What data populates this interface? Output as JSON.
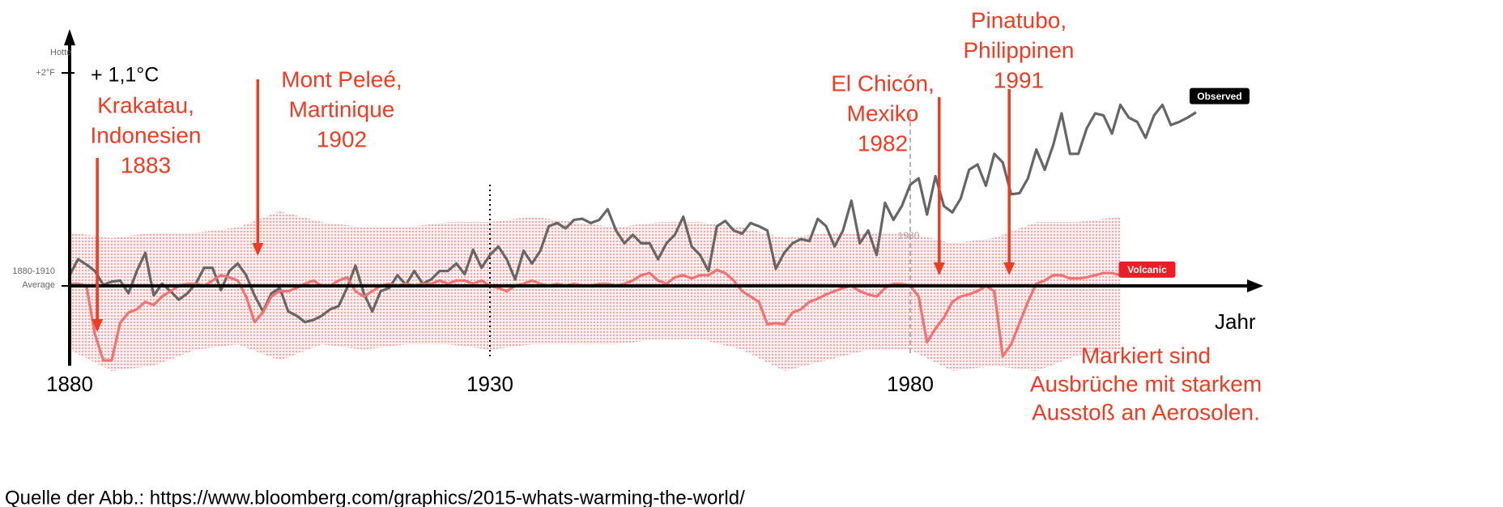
{
  "chart_data": {
    "type": "line",
    "y_label": "Hotte",
    "x_label": "Jahr",
    "xlim": [
      1880,
      2022
    ],
    "xticks": [
      1880,
      1930,
      1980
    ],
    "ylim": [
      -0.75,
      2.4
    ],
    "yticks": [
      {
        "value": 0,
        "label": "1880-1910 Average"
      },
      {
        "value": 2,
        "label": "+2°F"
      }
    ],
    "celsius_note": "+ 1,1°C",
    "marker_label": "1980",
    "series": [
      {
        "name": "Observed",
        "color": "#666666",
        "x": [
          1880,
          1881,
          1882,
          1883,
          1884,
          1885,
          1886,
          1887,
          1888,
          1889,
          1890,
          1891,
          1892,
          1893,
          1894,
          1895,
          1896,
          1897,
          1898,
          1899,
          1900,
          1901,
          1902,
          1903,
          1904,
          1905,
          1906,
          1907,
          1908,
          1909,
          1910,
          1911,
          1912,
          1913,
          1914,
          1915,
          1916,
          1917,
          1918,
          1919,
          1920,
          1921,
          1922,
          1923,
          1924,
          1925,
          1926,
          1927,
          1928,
          1929,
          1930,
          1931,
          1932,
          1933,
          1934,
          1935,
          1936,
          1937,
          1938,
          1939,
          1940,
          1941,
          1942,
          1943,
          1944,
          1945,
          1946,
          1947,
          1948,
          1949,
          1950,
          1951,
          1952,
          1953,
          1954,
          1955,
          1956,
          1957,
          1958,
          1959,
          1960,
          1961,
          1962,
          1963,
          1964,
          1965,
          1966,
          1967,
          1968,
          1969,
          1970,
          1971,
          1972,
          1973,
          1974,
          1975,
          1976,
          1977,
          1978,
          1979,
          1980,
          1981,
          1982,
          1983,
          1984,
          1985,
          1986,
          1987,
          1988,
          1989,
          1990,
          1991,
          1992,
          1993,
          1994,
          1995,
          1996,
          1997,
          1998,
          1999,
          2000,
          2001,
          2002,
          2003,
          2004,
          2005,
          2006,
          2007,
          2008,
          2009,
          2010,
          2011,
          2012,
          2013,
          2014
        ],
        "values": [
          0.1,
          0.25,
          0.2,
          0.14,
          0.01,
          0.04,
          0.05,
          -0.07,
          0.14,
          0.31,
          -0.09,
          0.02,
          -0.05,
          -0.13,
          -0.07,
          0.02,
          0.17,
          0.17,
          -0.04,
          0.14,
          0.21,
          0.1,
          -0.09,
          -0.24,
          -0.07,
          -0.02,
          -0.24,
          -0.28,
          -0.34,
          -0.32,
          -0.28,
          -0.22,
          -0.19,
          -0.02,
          0.19,
          -0.07,
          -0.24,
          -0.05,
          -0.02,
          0.1,
          0.01,
          0.14,
          0.02,
          0.06,
          0.14,
          0.14,
          0.21,
          0.11,
          0.34,
          0.17,
          0.29,
          0.37,
          0.25,
          0.06,
          0.33,
          0.21,
          0.33,
          0.56,
          0.59,
          0.54,
          0.62,
          0.63,
          0.59,
          0.62,
          0.72,
          0.52,
          0.4,
          0.48,
          0.4,
          0.4,
          0.25,
          0.4,
          0.48,
          0.65,
          0.37,
          0.29,
          0.14,
          0.56,
          0.61,
          0.52,
          0.49,
          0.59,
          0.56,
          0.52,
          0.16,
          0.31,
          0.4,
          0.44,
          0.42,
          0.63,
          0.56,
          0.37,
          0.52,
          0.8,
          0.4,
          0.52,
          0.29,
          0.78,
          0.62,
          0.75,
          0.95,
          1.01,
          0.67,
          1.03,
          0.75,
          0.69,
          0.82,
          1.09,
          1.14,
          0.94,
          1.24,
          1.16,
          0.86,
          0.87,
          1.01,
          1.28,
          1.09,
          1.32,
          1.62,
          1.24,
          1.24,
          1.48,
          1.62,
          1.6,
          1.43,
          1.7,
          1.58,
          1.54,
          1.39,
          1.6,
          1.7,
          1.51,
          1.54,
          1.58,
          1.63
        ]
      },
      {
        "name": "Volcanic",
        "color": "#f07272",
        "label_color": "#ee1c24",
        "x": [
          1880,
          1881,
          1882,
          1883,
          1884,
          1885,
          1886,
          1887,
          1888,
          1889,
          1890,
          1891,
          1892,
          1893,
          1894,
          1895,
          1896,
          1897,
          1898,
          1899,
          1900,
          1901,
          1902,
          1903,
          1904,
          1905,
          1906,
          1907,
          1908,
          1909,
          1910,
          1911,
          1912,
          1913,
          1914,
          1915,
          1916,
          1917,
          1918,
          1919,
          1920,
          1921,
          1922,
          1923,
          1924,
          1925,
          1926,
          1927,
          1928,
          1929,
          1930,
          1931,
          1932,
          1933,
          1934,
          1935,
          1936,
          1937,
          1938,
          1939,
          1940,
          1941,
          1942,
          1943,
          1944,
          1945,
          1946,
          1947,
          1948,
          1949,
          1950,
          1951,
          1952,
          1953,
          1954,
          1955,
          1956,
          1957,
          1958,
          1959,
          1960,
          1961,
          1962,
          1963,
          1964,
          1965,
          1966,
          1967,
          1968,
          1969,
          1970,
          1971,
          1972,
          1973,
          1974,
          1975,
          1976,
          1977,
          1978,
          1979,
          1980,
          1981,
          1982,
          1983,
          1984,
          1985,
          1986,
          1987,
          1988,
          1989,
          1990,
          1991,
          1992,
          1993,
          1994,
          1995,
          1996,
          1997,
          1998,
          1999,
          2000,
          2001,
          2002,
          2003,
          2004,
          2005
        ],
        "values": [
          0.02,
          0.02,
          0.0,
          -0.45,
          -0.7,
          -0.7,
          -0.35,
          -0.25,
          -0.22,
          -0.15,
          -0.18,
          -0.1,
          -0.05,
          0.0,
          0.02,
          0.02,
          0.0,
          0.05,
          0.1,
          0.08,
          0.05,
          -0.1,
          -0.34,
          -0.25,
          -0.1,
          -0.05,
          -0.05,
          -0.02,
          0.02,
          0.05,
          0.0,
          0.0,
          0.05,
          0.08,
          -0.05,
          -0.1,
          -0.05,
          0.0,
          0.02,
          0.0,
          0.02,
          0.0,
          0.02,
          0.02,
          0.05,
          0.02,
          0.05,
          0.05,
          0.02,
          0.05,
          0.0,
          -0.02,
          -0.05,
          0.0,
          0.02,
          0.05,
          0.02,
          0.0,
          0.02,
          0.0,
          0.02,
          0.0,
          0.0,
          0.02,
          0.02,
          0.0,
          0.02,
          0.05,
          0.1,
          0.12,
          0.05,
          0.02,
          0.08,
          0.1,
          0.07,
          0.1,
          0.1,
          0.15,
          0.12,
          0.05,
          -0.05,
          -0.1,
          -0.15,
          -0.36,
          -0.35,
          -0.36,
          -0.25,
          -0.22,
          -0.15,
          -0.12,
          -0.08,
          -0.05,
          -0.02,
          0.0,
          -0.05,
          -0.08,
          -0.1,
          -0.02,
          0.02,
          0.02,
          0.0,
          -0.1,
          -0.53,
          -0.4,
          -0.3,
          -0.15,
          -0.1,
          -0.08,
          -0.05,
          0.0,
          -0.05,
          -0.66,
          -0.55,
          -0.35,
          -0.15,
          0.02,
          0.05,
          0.1,
          0.1,
          0.07,
          0.07,
          0.08,
          0.1,
          0.12,
          0.12,
          0.1
        ]
      }
    ],
    "band": {
      "color": "#f7a0a0",
      "x": [
        1880,
        1885,
        1890,
        1895,
        1900,
        1905,
        1910,
        1915,
        1920,
        1925,
        1930,
        1935,
        1940,
        1945,
        1950,
        1955,
        1960,
        1965,
        1970,
        1975,
        1980,
        1985,
        1990,
        1995,
        2000,
        2005
      ],
      "upper": [
        0.5,
        0.45,
        0.5,
        0.5,
        0.55,
        0.7,
        0.6,
        0.55,
        0.55,
        0.6,
        0.6,
        0.65,
        0.6,
        0.55,
        0.6,
        0.6,
        0.55,
        0.45,
        0.5,
        0.5,
        0.5,
        0.4,
        0.45,
        0.6,
        0.6,
        0.65
      ],
      "lower": [
        -0.6,
        -0.8,
        -0.75,
        -0.6,
        -0.55,
        -0.7,
        -0.55,
        -0.6,
        -0.55,
        -0.55,
        -0.6,
        -0.55,
        -0.55,
        -0.55,
        -0.5,
        -0.5,
        -0.6,
        -0.8,
        -0.7,
        -0.6,
        -0.6,
        -0.8,
        -0.75,
        -0.8,
        -0.65,
        -0.6
      ]
    },
    "annotation_color": "#ee3b24",
    "annotations": [
      {
        "lines": [
          "Krakatau,",
          "Indonesien",
          "1883"
        ],
        "year": 1883
      },
      {
        "lines": [
          "Mont Peleé,",
          "Martinique",
          "1902"
        ],
        "year": 1902
      },
      {
        "lines": [
          "El Chicón,",
          "Mexiko",
          "1982"
        ],
        "year": 1982
      },
      {
        "lines": [
          "Pinatubo,",
          "Philippinen",
          "1991"
        ],
        "year": 1991
      }
    ],
    "note": [
      "Markiert sind",
      "Ausbrüche mit starkem",
      "Ausstoß an Aerosolen."
    ],
    "source": "Quelle der Abb.: https://www.bloomberg.com/graphics/2015-whats-warming-the-world/"
  }
}
